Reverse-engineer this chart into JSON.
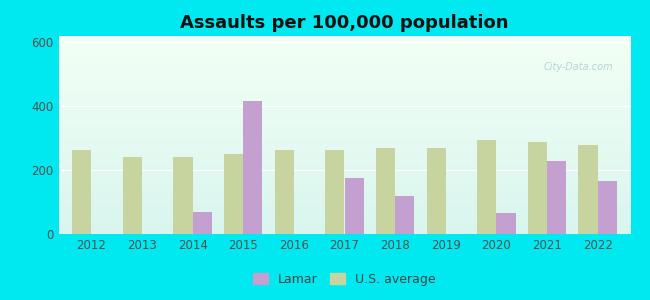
{
  "title": "Assaults per 100,000 population",
  "years": [
    2012,
    2013,
    2014,
    2015,
    2016,
    2017,
    2018,
    2019,
    2020,
    2021,
    2022
  ],
  "lamar": [
    null,
    null,
    70,
    415,
    null,
    175,
    120,
    null,
    65,
    228,
    165
  ],
  "us_avg": [
    262,
    240,
    240,
    252,
    263,
    263,
    268,
    268,
    293,
    288,
    278
  ],
  "lamar_color": "#c4a0d0",
  "us_avg_color": "#c8d4a0",
  "ylim": [
    0,
    620
  ],
  "yticks": [
    0,
    200,
    400,
    600
  ],
  "bar_width": 0.38,
  "background_top": "#f2fff4",
  "background_bottom": "#d8f5ee",
  "outer_bg": "#00e8f0",
  "title_fontsize": 13,
  "tick_fontsize": 8.5,
  "legend_fontsize": 9
}
